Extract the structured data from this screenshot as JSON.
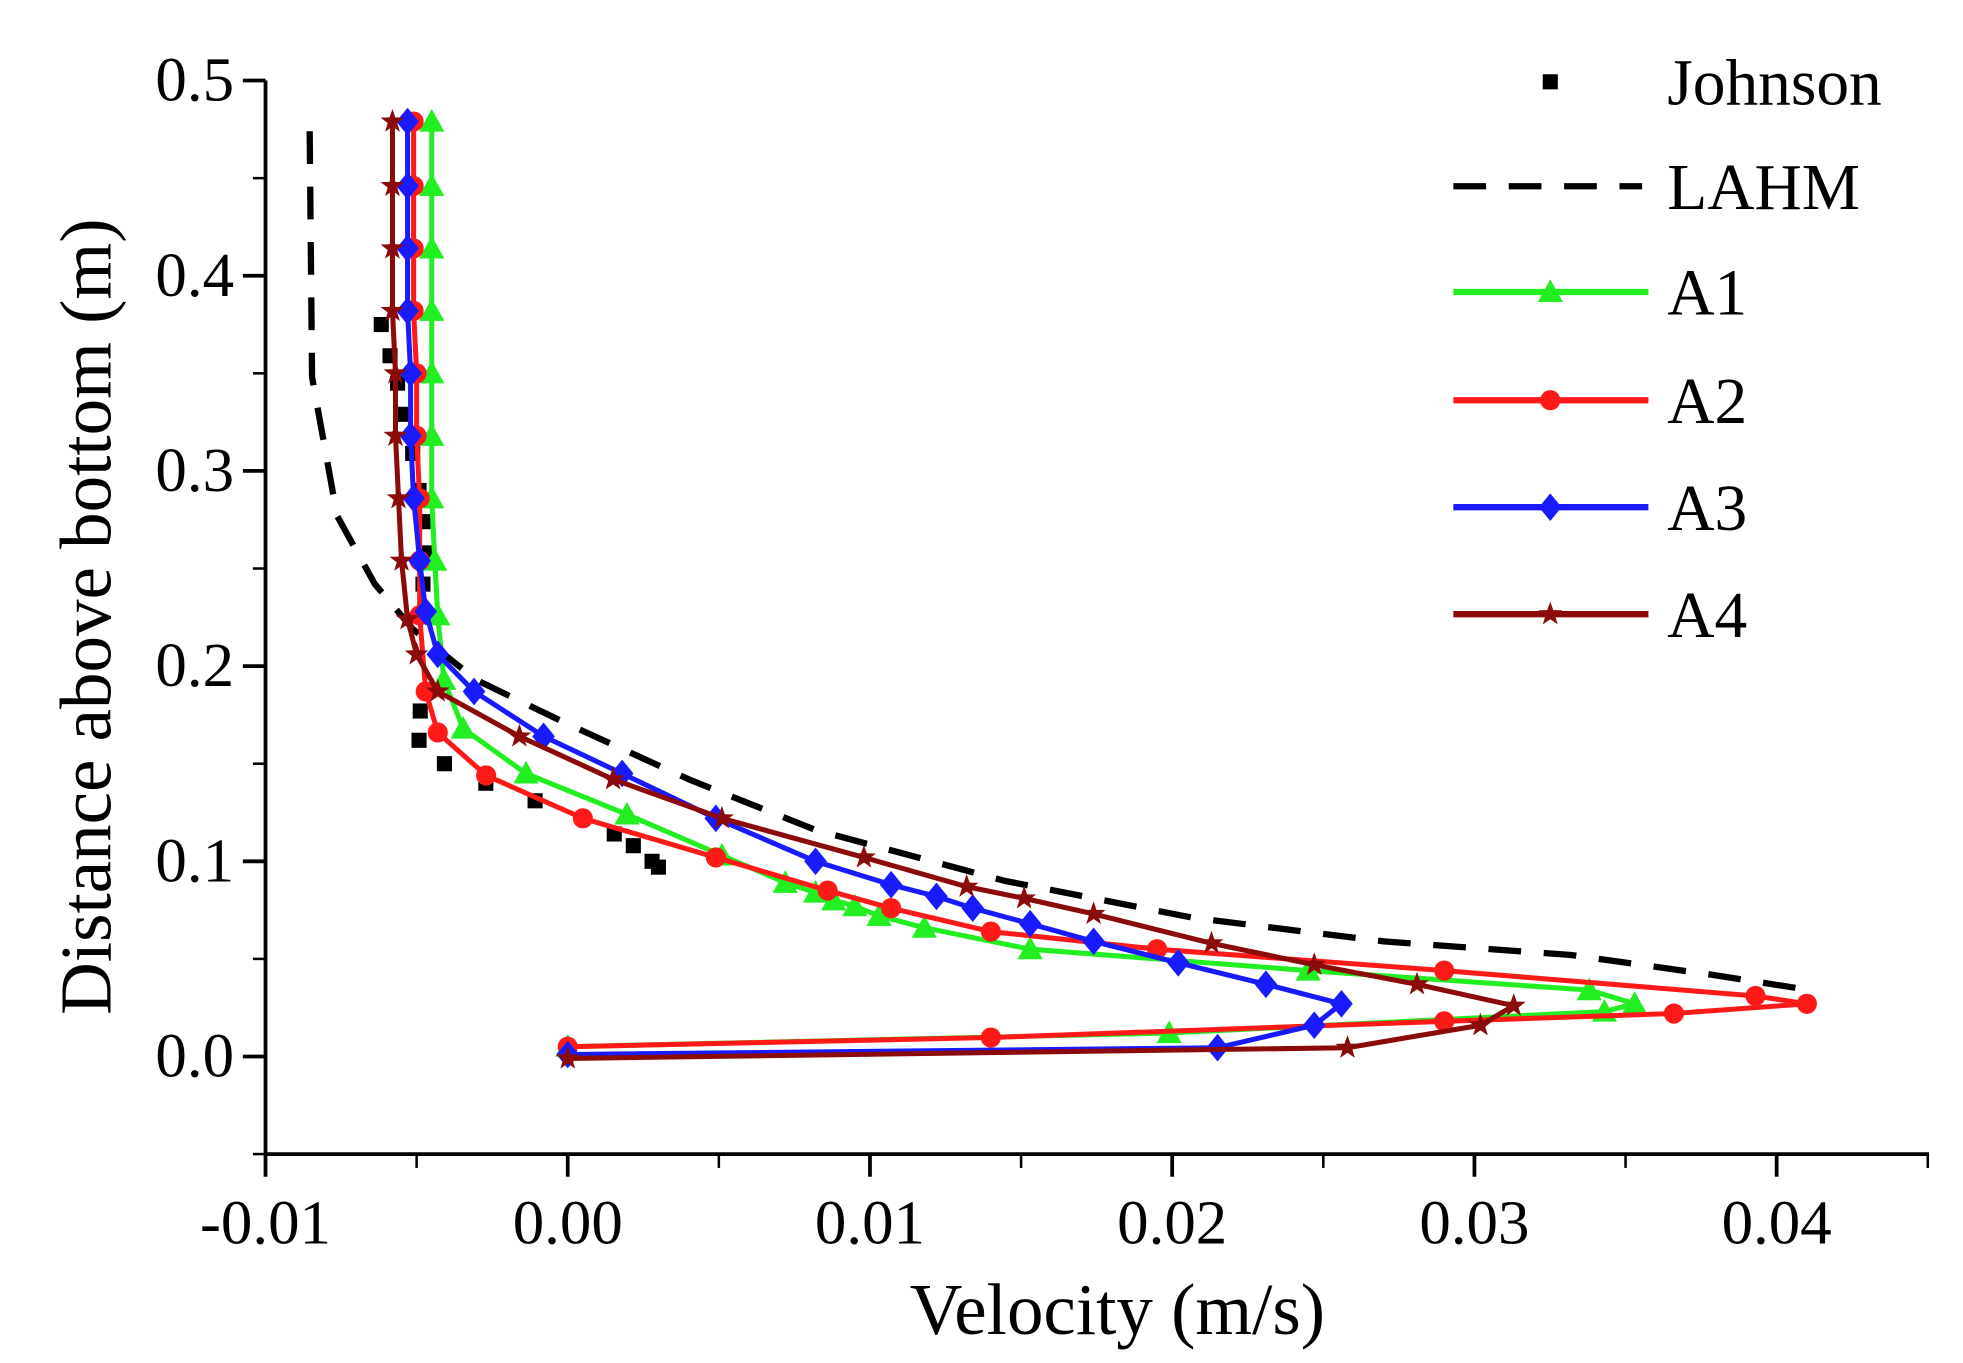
{
  "chart_data": {
    "type": "line",
    "title": "",
    "xlabel": "Velocity (m/s)",
    "ylabel": "Distance above bottom (m)",
    "xlim": [
      -0.01,
      0.045
    ],
    "ylim": [
      -0.05,
      0.5
    ],
    "xticks": [
      "-0.01",
      "0.00",
      "0.01",
      "0.02",
      "0.03",
      "0.04"
    ],
    "xtick_values": [
      -0.01,
      0,
      0.01,
      0.02,
      0.03,
      0.04
    ],
    "yticks": [
      "0.0",
      "0.1",
      "0.2",
      "0.3",
      "0.4",
      "0.5"
    ],
    "ytick_values": [
      0,
      0.1,
      0.2,
      0.3,
      0.4,
      0.5
    ],
    "grid": false,
    "legend_position": "top-right",
    "series": [
      {
        "name": "Johnson",
        "color": "#000000",
        "style": "markers",
        "marker": "square",
        "x": [
          -0.00617,
          -0.00588,
          -0.00563,
          -0.00546,
          -0.00513,
          -0.00492,
          -0.00479,
          -0.00471,
          -0.00479,
          -0.00488,
          -0.00492,
          -0.00408,
          -0.00271,
          -0.00108,
          0.00154,
          0.00217,
          0.00279,
          0.003
        ],
        "y": [
          0.375,
          0.359,
          0.345,
          0.329,
          0.309,
          0.29,
          0.274,
          0.258,
          0.242,
          0.177,
          0.162,
          0.15,
          0.14,
          0.131,
          0.114,
          0.108,
          0.1,
          0.097
        ]
      },
      {
        "name": "LAHM",
        "color": "#000000",
        "style": "dashed",
        "marker": "none",
        "x": [
          -0.00854,
          -0.00846,
          -0.00763,
          -0.00638,
          -0.00513,
          -0.00304,
          -0.0001,
          0.004,
          0.0082,
          0.01446,
          0.0207,
          0.027,
          0.0332,
          0.0378,
          0.0411
        ],
        "y": [
          0.474,
          0.348,
          0.277,
          0.242,
          0.219,
          0.193,
          0.171,
          0.142,
          0.116,
          0.09,
          0.071,
          0.059,
          0.052,
          0.042,
          0.034
        ]
      },
      {
        "name": "A1",
        "color": "#22ee22",
        "style": "solid",
        "marker": "triangle",
        "x": [
          -0.0045,
          -0.0045,
          -0.0045,
          -0.0045,
          -0.0045,
          -0.0045,
          -0.0045,
          -0.0044,
          -0.0043,
          -0.0041,
          -0.00346,
          -0.00138,
          0.00196,
          0.0051,
          0.0072,
          0.0082,
          0.0088,
          0.0095,
          0.0103,
          0.0118,
          0.0153,
          0.0245,
          0.0338,
          0.0353,
          0.0343,
          0.0199,
          0.0
        ],
        "y": [
          0.479,
          0.446,
          0.414,
          0.382,
          0.35,
          0.318,
          0.286,
          0.254,
          0.226,
          0.193,
          0.168,
          0.145,
          0.124,
          0.103,
          0.089,
          0.084,
          0.08,
          0.077,
          0.072,
          0.066,
          0.055,
          0.044,
          0.034,
          0.027,
          0.023,
          0.012,
          0.005
        ]
      },
      {
        "name": "A2",
        "color": "#ff1a1a",
        "style": "solid",
        "marker": "circle",
        "x": [
          -0.0051,
          -0.0051,
          -0.0051,
          -0.0051,
          -0.005,
          -0.005,
          -0.0049,
          -0.0049,
          -0.0049,
          -0.0047,
          -0.0043,
          -0.0027,
          0.0005,
          0.0049,
          0.0086,
          0.0107,
          0.014,
          0.0195,
          0.029,
          0.0393,
          0.041,
          0.0366,
          0.029,
          0.014,
          0.0
        ],
        "y": [
          0.479,
          0.446,
          0.414,
          0.382,
          0.35,
          0.318,
          0.286,
          0.254,
          0.226,
          0.187,
          0.166,
          0.144,
          0.122,
          0.102,
          0.085,
          0.076,
          0.064,
          0.055,
          0.044,
          0.031,
          0.027,
          0.022,
          0.018,
          0.0097,
          0.005
        ]
      },
      {
        "name": "A3",
        "color": "#1a1aff",
        "style": "solid",
        "marker": "diamond",
        "x": [
          -0.0053,
          -0.0053,
          -0.0053,
          -0.0053,
          -0.0052,
          -0.0052,
          -0.0051,
          -0.0049,
          -0.0047,
          -0.0043,
          -0.0031,
          -0.0008,
          0.0018,
          0.0049,
          0.0082,
          0.0107,
          0.0122,
          0.0134,
          0.0153,
          0.0174,
          0.0202,
          0.0231,
          0.0256,
          0.0247,
          0.0215,
          0.0
        ],
        "y": [
          0.479,
          0.446,
          0.414,
          0.382,
          0.35,
          0.318,
          0.286,
          0.254,
          0.228,
          0.206,
          0.187,
          0.164,
          0.145,
          0.122,
          0.1,
          0.088,
          0.082,
          0.076,
          0.068,
          0.059,
          0.048,
          0.037,
          0.027,
          0.016,
          0.0045,
          0.001
        ]
      },
      {
        "name": "A4",
        "color": "#8b0a0a",
        "style": "solid",
        "marker": "star",
        "x": [
          -0.0058,
          -0.0058,
          -0.0058,
          -0.0058,
          -0.0057,
          -0.0057,
          -0.0056,
          -0.0055,
          -0.0053,
          -0.005,
          -0.0043,
          -0.0016,
          0.0015,
          0.0051,
          0.0098,
          0.0132,
          0.0151,
          0.0174,
          0.0213,
          0.0247,
          0.0281,
          0.0313,
          0.0302,
          0.0258,
          0.0
        ],
        "y": [
          0.479,
          0.446,
          0.414,
          0.382,
          0.35,
          0.318,
          0.286,
          0.254,
          0.224,
          0.206,
          0.187,
          0.164,
          0.142,
          0.122,
          0.102,
          0.087,
          0.081,
          0.073,
          0.058,
          0.047,
          0.037,
          0.026,
          0.016,
          0.0045,
          -0.001
        ]
      }
    ]
  }
}
